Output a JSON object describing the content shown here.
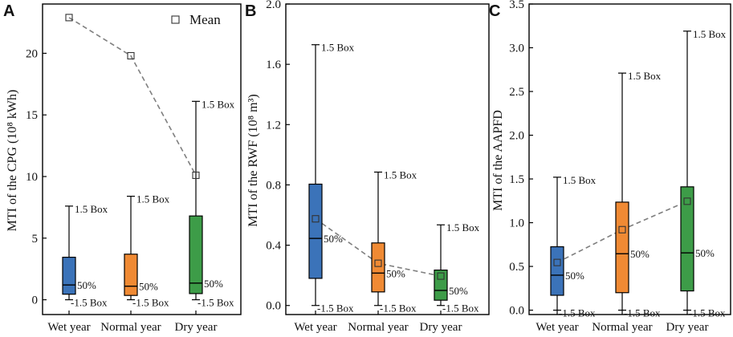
{
  "chart_data": [
    {
      "type": "box",
      "panel_label": "A",
      "ylabel": "MTI of the CPG (10⁸ kWh)",
      "ylim": [
        -1.2,
        24
      ],
      "yticks": [
        0,
        5,
        10,
        15,
        20
      ],
      "ytick_labels": [
        "0",
        "5",
        "10",
        "15",
        "20"
      ],
      "categories": [
        "Wet year",
        "Normal year",
        "Dry year"
      ],
      "boxes": [
        {
          "low": 0,
          "q1": 0.45,
          "median": 1.2,
          "q3": 3.45,
          "high": 7.6,
          "mean": 22.9
        },
        {
          "low": 0,
          "q1": 0.35,
          "median": 1.1,
          "q3": 3.7,
          "high": 8.4,
          "mean": 19.8
        },
        {
          "low": 0,
          "q1": 0.5,
          "median": 1.35,
          "q3": 6.8,
          "high": 16.1,
          "mean": 10.1
        }
      ],
      "colors": [
        "#3b73b9",
        "#f08a34",
        "#3d9c48"
      ],
      "legend": {
        "label": "Mean",
        "position": "top-right"
      },
      "annotations": {
        "high": "1.5 Box",
        "median": "50%",
        "low": "-1.5 Box"
      }
    },
    {
      "type": "box",
      "panel_label": "B",
      "ylabel": "MTI of the RWF (10⁸ m³)",
      "ylim": [
        -0.06,
        2.0
      ],
      "yticks": [
        0.0,
        0.4,
        0.8,
        1.2,
        1.6,
        2.0
      ],
      "ytick_labels": [
        "0.0",
        "0.4",
        "0.8",
        "1.2",
        "1.6",
        "2.0"
      ],
      "categories": [
        "Wet year",
        "Normal year",
        "Dry year"
      ],
      "boxes": [
        {
          "low": 0.0,
          "q1": 0.18,
          "median": 0.445,
          "q3": 0.805,
          "high": 1.73,
          "mean": 0.575
        },
        {
          "low": 0.0,
          "q1": 0.09,
          "median": 0.215,
          "q3": 0.415,
          "high": 0.885,
          "mean": 0.28
        },
        {
          "low": 0.0,
          "q1": 0.035,
          "median": 0.1,
          "q3": 0.235,
          "high": 0.535,
          "mean": 0.195
        }
      ],
      "colors": [
        "#3b73b9",
        "#f08a34",
        "#3d9c48"
      ],
      "annotations": {
        "high": "1.5 Box",
        "median": "50%",
        "low": "-1.5 Box"
      }
    },
    {
      "type": "box",
      "panel_label": "C",
      "ylabel": "MTI of the AAPFD",
      "ylim": [
        -0.05,
        3.5
      ],
      "yticks": [
        0.0,
        0.5,
        1.0,
        1.5,
        2.0,
        2.5,
        3.0,
        3.5
      ],
      "ytick_labels": [
        "0.0",
        "0.5",
        "1.0",
        "1.5",
        "2.0",
        "2.5",
        "3.0",
        "3.5"
      ],
      "categories": [
        "Wet year",
        "Normal year",
        "Dry year"
      ],
      "boxes": [
        {
          "low": 0.0,
          "q1": 0.17,
          "median": 0.4,
          "q3": 0.725,
          "high": 1.52,
          "mean": 0.545
        },
        {
          "low": 0.0,
          "q1": 0.2,
          "median": 0.645,
          "q3": 1.235,
          "high": 2.71,
          "mean": 0.92
        },
        {
          "low": 0.0,
          "q1": 0.22,
          "median": 0.655,
          "q3": 1.41,
          "high": 3.19,
          "mean": 1.245
        }
      ],
      "colors": [
        "#3b73b9",
        "#f08a34",
        "#3d9c48"
      ],
      "annotations": {
        "high": "1.5 Box",
        "median": "50%",
        "low": "-1.5 Box"
      }
    }
  ]
}
